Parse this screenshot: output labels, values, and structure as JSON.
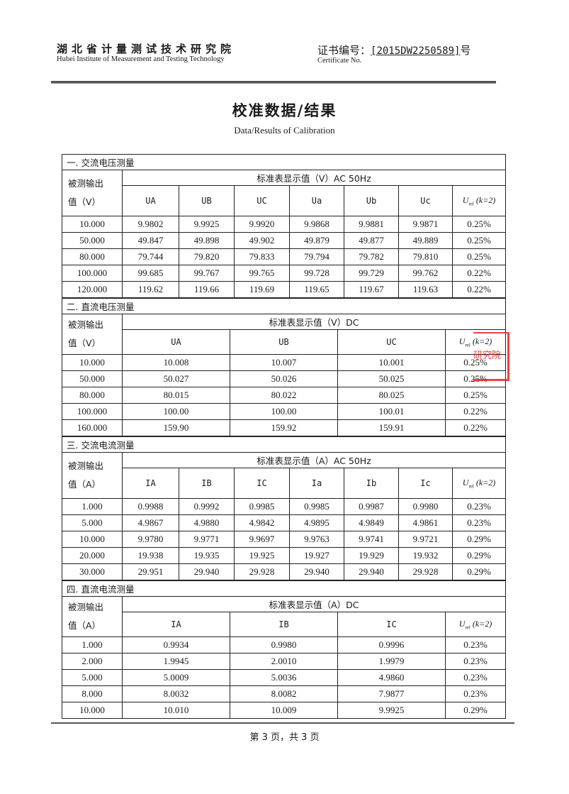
{
  "header": {
    "institute_cn": "湖北省计量测试技术研究院",
    "institute_en": "Hubei Institute of Measurement and Testing Technology",
    "cert_label_cn": "证书编号：",
    "cert_number": "[2015DW2250589]",
    "cert_suffix": "号",
    "cert_label_en": "Certificate No."
  },
  "title": {
    "cn": "校准数据/结果",
    "en": "Data/Results of Calibration"
  },
  "uncertainty_label": {
    "main": "U",
    "sub": "rel",
    "suffix": " (k=2)"
  },
  "sections": [
    {
      "title": "一. 交流电压测量",
      "first_header": [
        "被测输出",
        "值（V）"
      ],
      "group_header": "标准表显示值（V）AC 50Hz",
      "columns": [
        "UA",
        "UB",
        "UC",
        "Ua",
        "Ub",
        "Uc"
      ],
      "rows": [
        [
          "10.000",
          "9.9802",
          "9.9925",
          "9.9920",
          "9.9868",
          "9.9881",
          "9.9871",
          "0.25%"
        ],
        [
          "50.000",
          "49.847",
          "49.898",
          "49.902",
          "49.879",
          "49.877",
          "49.889",
          "0.25%"
        ],
        [
          "80.000",
          "79.744",
          "79.820",
          "79.833",
          "79.794",
          "79.782",
          "79.810",
          "0.25%"
        ],
        [
          "100.000",
          "99.685",
          "99.767",
          "99.765",
          "99.728",
          "99.729",
          "99.762",
          "0.22%"
        ],
        [
          "120.000",
          "119.62",
          "119.66",
          "119.69",
          "119.65",
          "119.67",
          "119.63",
          "0.22%"
        ]
      ]
    },
    {
      "title": "二. 直流电压测量",
      "first_header": [
        "被测输出",
        "值（V）"
      ],
      "group_header": "标准表显示值（V）DC",
      "columns": [
        "UA",
        "UB",
        "UC"
      ],
      "rows": [
        [
          "10.000",
          "10.008",
          "10.007",
          "10.001",
          "0.25%"
        ],
        [
          "50.000",
          "50.027",
          "50.026",
          "50.025",
          "0.25%"
        ],
        [
          "80.000",
          "80.015",
          "80.022",
          "80.025",
          "0.25%"
        ],
        [
          "100.000",
          "100.00",
          "100.00",
          "100.01",
          "0.22%"
        ],
        [
          "160.000",
          "159.90",
          "159.92",
          "159.91",
          "0.22%"
        ]
      ]
    },
    {
      "title": "三. 交流电流测量",
      "first_header": [
        "被测输出",
        "值（A）"
      ],
      "group_header": "标准表显示值（A）AC 50Hz",
      "columns": [
        "IA",
        "IB",
        "IC",
        "Ia",
        "Ib",
        "Ic"
      ],
      "rows": [
        [
          "1.000",
          "0.9988",
          "0.9992",
          "0.9985",
          "0.9985",
          "0.9987",
          "0.9980",
          "0.23%"
        ],
        [
          "5.000",
          "4.9867",
          "4.9880",
          "4.9842",
          "4.9895",
          "4.9849",
          "4.9861",
          "0.23%"
        ],
        [
          "10.000",
          "9.9780",
          "9.9771",
          "9.9697",
          "9.9763",
          "9.9741",
          "9.9721",
          "0.29%"
        ],
        [
          "20.000",
          "19.938",
          "19.935",
          "19.925",
          "19.927",
          "19.929",
          "19.932",
          "0.29%"
        ],
        [
          "30.000",
          "29.951",
          "29.940",
          "29.928",
          "29.940",
          "29.940",
          "29.928",
          "0.29%"
        ]
      ]
    },
    {
      "title": "四. 直流电流测量",
      "first_header": [
        "被测输出",
        "值（A）"
      ],
      "group_header": "标准表显示值（A）DC",
      "columns": [
        "IA",
        "IB",
        "IC"
      ],
      "rows": [
        [
          "1.000",
          "0.9934",
          "0.9980",
          "0.9996",
          "0.23%"
        ],
        [
          "2.000",
          "1.9945",
          "2.0010",
          "1.9979",
          "0.23%"
        ],
        [
          "5.000",
          "5.0009",
          "5.0036",
          "4.9860",
          "0.23%"
        ],
        [
          "8.000",
          "8.0032",
          "8.0082",
          "7.9877",
          "0.23%"
        ],
        [
          "10.000",
          "10.010",
          "10.009",
          "9.9925",
          "0.29%"
        ]
      ]
    }
  ],
  "stamp_text": "研究院",
  "stamp_color": "#e22222",
  "footer": "第 3 页，共 3 页"
}
